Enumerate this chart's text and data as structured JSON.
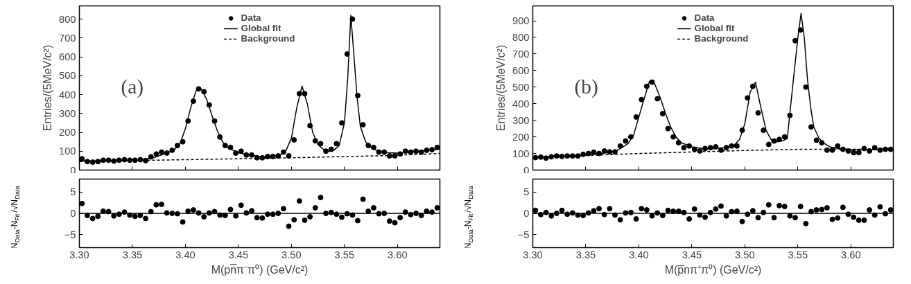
{
  "chart_data": [
    {
      "type": "scatter",
      "ylabel": "Entries/(5MeV/c²)",
      "annotations": [
        "(a)"
      ],
      "legend": "top",
      "grid": false,
      "tick_labels": "y",
      "xlim": [
        3.3,
        3.64
      ],
      "xticks": [
        {
          "value": 3.3,
          "label": null
        },
        {
          "value": 3.35,
          "label": null
        },
        {
          "value": 3.4,
          "label": null
        },
        {
          "value": 3.45,
          "label": null
        },
        {
          "value": 3.5,
          "label": null
        },
        {
          "value": 3.55,
          "label": null
        },
        {
          "value": 3.6,
          "label": null
        }
      ],
      "ylim": [
        0,
        870
      ],
      "yticks": [
        0,
        100,
        200,
        300,
        400,
        500,
        600,
        700,
        800
      ],
      "x": [
        3.3025,
        3.3075,
        3.3125,
        3.3175,
        3.3225,
        3.3275,
        3.3325,
        3.3375,
        3.3425,
        3.3475,
        3.3525,
        3.3575,
        3.3625,
        3.3675,
        3.3725,
        3.3775,
        3.3825,
        3.3875,
        3.3925,
        3.3975,
        3.4025,
        3.4075,
        3.4125,
        3.4175,
        3.4225,
        3.4275,
        3.4325,
        3.4375,
        3.4425,
        3.4475,
        3.4525,
        3.4575,
        3.4625,
        3.4675,
        3.4725,
        3.4775,
        3.4825,
        3.4875,
        3.4925,
        3.4975,
        3.5025,
        3.5075,
        3.5125,
        3.5175,
        3.5225,
        3.5275,
        3.5325,
        3.5375,
        3.5425,
        3.5475,
        3.5525,
        3.5575,
        3.5625,
        3.5675,
        3.5725,
        3.5775,
        3.5825,
        3.5875,
        3.5925,
        3.5975,
        3.6025,
        3.6075,
        3.6125,
        3.6175,
        3.6225,
        3.6275,
        3.6325,
        3.6375
      ],
      "series": [
        {
          "name": "Data",
          "marker": "circle",
          "color": "#000000",
          "values": [
            60,
            45,
            42,
            45,
            52,
            52,
            48,
            52,
            55,
            52,
            52,
            55,
            50,
            70,
            85,
            95,
            90,
            105,
            130,
            150,
            260,
            365,
            430,
            415,
            345,
            260,
            175,
            130,
            120,
            90,
            100,
            80,
            80,
            65,
            65,
            72,
            72,
            75,
            95,
            75,
            160,
            405,
            405,
            235,
            155,
            140,
            100,
            110,
            140,
            250,
            615,
            800,
            395,
            240,
            130,
            120,
            95,
            95,
            75,
            75,
            85,
            100,
            95,
            100,
            95,
            105,
            108,
            120
          ]
        },
        {
          "name": "Global fit",
          "type": "line",
          "line_style": "solid",
          "color": "#000000",
          "x": [
            3.3,
            3.32,
            3.34,
            3.36,
            3.37,
            3.38,
            3.39,
            3.395,
            3.4,
            3.405,
            3.41,
            3.415,
            3.42,
            3.425,
            3.43,
            3.435,
            3.44,
            3.45,
            3.46,
            3.47,
            3.48,
            3.49,
            3.495,
            3.5,
            3.505,
            3.51,
            3.515,
            3.52,
            3.525,
            3.53,
            3.535,
            3.54,
            3.545,
            3.55,
            3.553,
            3.556,
            3.559,
            3.562,
            3.565,
            3.57,
            3.575,
            3.58,
            3.59,
            3.6,
            3.62,
            3.64
          ],
          "values": [
            48,
            50,
            52,
            56,
            65,
            85,
            110,
            140,
            220,
            330,
            420,
            430,
            375,
            290,
            210,
            150,
            118,
            92,
            80,
            72,
            72,
            82,
            105,
            170,
            330,
            445,
            350,
            200,
            135,
            110,
            100,
            105,
            130,
            250,
            480,
            820,
            600,
            380,
            230,
            150,
            120,
            105,
            92,
            90,
            98,
            112
          ]
        },
        {
          "name": "Background",
          "type": "line",
          "line_style": "dashed",
          "color": "#000000",
          "x": [
            3.3,
            3.4,
            3.5,
            3.6,
            3.64
          ],
          "values": [
            45,
            55,
            65,
            78,
            88
          ]
        }
      ]
    },
    {
      "type": "scatter",
      "xlabel": "M(pn̅π⁻π⁰) (GeV/c²)",
      "ylabel": "N$_{Data}$-N$_{Fit}$/√N$_{Data}$",
      "grid": false,
      "xlim": [
        3.3,
        3.64
      ],
      "xticks": [
        {
          "value": 3.3,
          "label": "3.30"
        },
        {
          "value": 3.35,
          "label": "3.35"
        },
        {
          "value": 3.4,
          "label": "3.40"
        },
        {
          "value": 3.45,
          "label": "3.45"
        },
        {
          "value": 3.5,
          "label": "3.50"
        },
        {
          "value": 3.55,
          "label": "3.55"
        },
        {
          "value": 3.6,
          "label": "3.60"
        }
      ],
      "ylim": [
        -8,
        8
      ],
      "yticks": [
        -5,
        0,
        5
      ],
      "ref_lines": [
        {
          "axis": "y",
          "value": 0,
          "color": "#000000"
        }
      ],
      "x": [
        3.3025,
        3.3075,
        3.3125,
        3.3175,
        3.3225,
        3.3275,
        3.3325,
        3.3375,
        3.3425,
        3.3475,
        3.3525,
        3.3575,
        3.3625,
        3.3675,
        3.3725,
        3.3775,
        3.3825,
        3.3875,
        3.3925,
        3.3975,
        3.4025,
        3.4075,
        3.4125,
        3.4175,
        3.4225,
        3.4275,
        3.4325,
        3.4375,
        3.4425,
        3.4475,
        3.4525,
        3.4575,
        3.4625,
        3.4675,
        3.4725,
        3.4775,
        3.4825,
        3.4875,
        3.4925,
        3.4975,
        3.5025,
        3.5075,
        3.5125,
        3.5175,
        3.5225,
        3.5275,
        3.5325,
        3.5375,
        3.5425,
        3.5475,
        3.5525,
        3.5575,
        3.5625,
        3.5675,
        3.5725,
        3.5775,
        3.5825,
        3.5875,
        3.5925,
        3.5975,
        3.6025,
        3.6075,
        3.6125,
        3.6175,
        3.6225,
        3.6275,
        3.6325,
        3.6375
      ],
      "series": [
        {
          "marker": "circle",
          "color": "#000000",
          "values": [
            2.3,
            -0.5,
            -1.2,
            -0.7,
            0.5,
            0.4,
            -0.6,
            -0.2,
            0.3,
            -0.4,
            -0.7,
            -0.5,
            -1.2,
            0.4,
            2.0,
            2.1,
            0.1,
            0.0,
            -0.1,
            -2.0,
            0.5,
            0.8,
            0.1,
            -0.8,
            0.1,
            0.4,
            -0.4,
            -0.5,
            0.9,
            -0.6,
            1.9,
            0.1,
            0.6,
            -1.0,
            -1.1,
            -0.2,
            -0.2,
            0.0,
            1.1,
            -3.0,
            -1.5,
            2.9,
            -1.6,
            -0.8,
            1.3,
            3.7,
            0.0,
            0.2,
            -0.2,
            -0.9,
            -0.1,
            -0.4,
            -1.7,
            3.3,
            0.5,
            1.3,
            -0.1,
            0.0,
            -1.8,
            -2.2,
            -1.0,
            0.3,
            -0.3,
            0.0,
            -0.5,
            0.5,
            0.3,
            1.3
          ]
        }
      ]
    },
    {
      "type": "scatter",
      "ylabel": "Entries/(5MeV/c²)",
      "annotations": [
        "(b)"
      ],
      "legend": "top",
      "grid": false,
      "tick_labels": "y",
      "xlim": [
        3.3,
        3.64
      ],
      "xticks": [
        {
          "value": 3.3,
          "label": null
        },
        {
          "value": 3.35,
          "label": null
        },
        {
          "value": 3.4,
          "label": null
        },
        {
          "value": 3.45,
          "label": null
        },
        {
          "value": 3.5,
          "label": null
        },
        {
          "value": 3.55,
          "label": null
        },
        {
          "value": 3.6,
          "label": null
        }
      ],
      "ylim": [
        0,
        990
      ],
      "yticks": [
        0,
        100,
        200,
        300,
        400,
        500,
        600,
        700,
        800,
        900
      ],
      "x": [
        3.3025,
        3.3075,
        3.3125,
        3.3175,
        3.3225,
        3.3275,
        3.3325,
        3.3375,
        3.3425,
        3.3475,
        3.3525,
        3.3575,
        3.3625,
        3.3675,
        3.3725,
        3.3775,
        3.3825,
        3.3875,
        3.3925,
        3.3975,
        3.4025,
        3.4075,
        3.4125,
        3.4175,
        3.4225,
        3.4275,
        3.4325,
        3.4375,
        3.4425,
        3.4475,
        3.4525,
        3.4575,
        3.4625,
        3.4675,
        3.4725,
        3.4775,
        3.4825,
        3.4875,
        3.4925,
        3.4975,
        3.5025,
        3.5075,
        3.5125,
        3.5175,
        3.5225,
        3.5275,
        3.5325,
        3.5375,
        3.5425,
        3.5475,
        3.5525,
        3.5575,
        3.5625,
        3.5675,
        3.5725,
        3.5775,
        3.5825,
        3.5875,
        3.5925,
        3.5975,
        3.6025,
        3.6075,
        3.6125,
        3.6175,
        3.6225,
        3.6275,
        3.6325,
        3.6375
      ],
      "series": [
        {
          "name": "Data",
          "marker": "circle",
          "color": "#000000",
          "values": [
            75,
            78,
            72,
            80,
            85,
            82,
            85,
            85,
            85,
            95,
            100,
            108,
            100,
            115,
            110,
            110,
            145,
            175,
            200,
            320,
            425,
            505,
            530,
            430,
            340,
            250,
            200,
            165,
            135,
            145,
            125,
            115,
            130,
            135,
            140,
            120,
            135,
            145,
            145,
            240,
            435,
            505,
            345,
            240,
            155,
            175,
            185,
            200,
            330,
            780,
            845,
            500,
            260,
            180,
            165,
            120,
            120,
            145,
            125,
            115,
            105,
            105,
            130,
            115,
            135,
            120,
            125,
            125
          ]
        },
        {
          "name": "Global fit",
          "type": "line",
          "line_style": "solid",
          "color": "#000000",
          "x": [
            3.3,
            3.32,
            3.34,
            3.36,
            3.37,
            3.38,
            3.39,
            3.395,
            3.4,
            3.405,
            3.41,
            3.415,
            3.42,
            3.425,
            3.43,
            3.435,
            3.44,
            3.45,
            3.46,
            3.47,
            3.48,
            3.49,
            3.495,
            3.5,
            3.505,
            3.51,
            3.515,
            3.52,
            3.525,
            3.53,
            3.535,
            3.54,
            3.545,
            3.55,
            3.553,
            3.556,
            3.559,
            3.562,
            3.565,
            3.57,
            3.575,
            3.58,
            3.59,
            3.6,
            3.62,
            3.64
          ],
          "values": [
            75,
            80,
            85,
            95,
            105,
            120,
            160,
            210,
            320,
            430,
            535,
            520,
            440,
            345,
            260,
            200,
            165,
            140,
            130,
            130,
            135,
            150,
            185,
            280,
            470,
            530,
            380,
            240,
            180,
            170,
            175,
            190,
            500,
            800,
            945,
            800,
            550,
            380,
            260,
            190,
            160,
            140,
            128,
            122,
            122,
            125
          ]
        },
        {
          "name": "Background",
          "type": "line",
          "line_style": "dashed",
          "color": "#000000",
          "x": [
            3.3,
            3.4,
            3.5,
            3.55,
            3.64
          ],
          "values": [
            75,
            100,
            118,
            125,
            125
          ]
        }
      ]
    },
    {
      "type": "scatter",
      "xlabel": "M(p̅nπ⁺π⁰) (GeV/c²)",
      "ylabel": "N$_{Data}$-N$_{Fit}$/√N$_{Data}$",
      "grid": false,
      "xlim": [
        3.3,
        3.64
      ],
      "xticks": [
        {
          "value": 3.3,
          "label": "3.30"
        },
        {
          "value": 3.35,
          "label": "3.35"
        },
        {
          "value": 3.4,
          "label": "3.40"
        },
        {
          "value": 3.45,
          "label": "3.45"
        },
        {
          "value": 3.5,
          "label": "3.50"
        },
        {
          "value": 3.55,
          "label": "3.55"
        },
        {
          "value": 3.6,
          "label": "3.60"
        }
      ],
      "ylim": [
        -8,
        8
      ],
      "yticks": [
        -5,
        0,
        5
      ],
      "ref_lines": [
        {
          "axis": "y",
          "value": 0,
          "color": "#000000"
        }
      ],
      "x": [
        3.3025,
        3.3075,
        3.3125,
        3.3175,
        3.3225,
        3.3275,
        3.3325,
        3.3375,
        3.3425,
        3.3475,
        3.3525,
        3.3575,
        3.3625,
        3.3675,
        3.3725,
        3.3775,
        3.3825,
        3.3875,
        3.3925,
        3.3975,
        3.4025,
        3.4075,
        3.4125,
        3.4175,
        3.4225,
        3.4275,
        3.4325,
        3.4375,
        3.4425,
        3.4475,
        3.4525,
        3.4575,
        3.4625,
        3.4675,
        3.4725,
        3.4775,
        3.4825,
        3.4875,
        3.4925,
        3.4975,
        3.5025,
        3.5075,
        3.5125,
        3.5175,
        3.5225,
        3.5275,
        3.5325,
        3.5375,
        3.5425,
        3.5475,
        3.5525,
        3.5575,
        3.5625,
        3.5675,
        3.5725,
        3.5775,
        3.5825,
        3.5875,
        3.5925,
        3.5975,
        3.6025,
        3.6075,
        3.6125,
        3.6175,
        3.6225,
        3.6275,
        3.6325,
        3.6375
      ],
      "series": [
        {
          "marker": "circle",
          "color": "#000000",
          "values": [
            0.7,
            -0.3,
            0.2,
            -0.6,
            0.0,
            0.7,
            -0.2,
            0.1,
            -0.4,
            -0.5,
            0.1,
            0.6,
            1.1,
            -0.3,
            1.1,
            -0.4,
            -1.5,
            0.1,
            0.2,
            -1.3,
            1.1,
            0.8,
            -0.6,
            0.1,
            -0.5,
            0.7,
            0.5,
            0.5,
            0.2,
            -1.3,
            1.0,
            -0.4,
            -0.9,
            0.2,
            1.0,
            1.7,
            -0.6,
            0.4,
            0.5,
            -1.9,
            -0.2,
            0.6,
            -1.0,
            0.2,
            2.0,
            -1.0,
            1.8,
            1.6,
            -0.6,
            -1.0,
            1.6,
            -2.4,
            0.4,
            0.8,
            0.9,
            1.3,
            -1.4,
            -1.1,
            1.4,
            -0.2,
            -0.9,
            -1.6,
            -1.6,
            0.8,
            -0.4,
            1.5,
            -0.1,
            0.8
          ]
        }
      ]
    }
  ]
}
